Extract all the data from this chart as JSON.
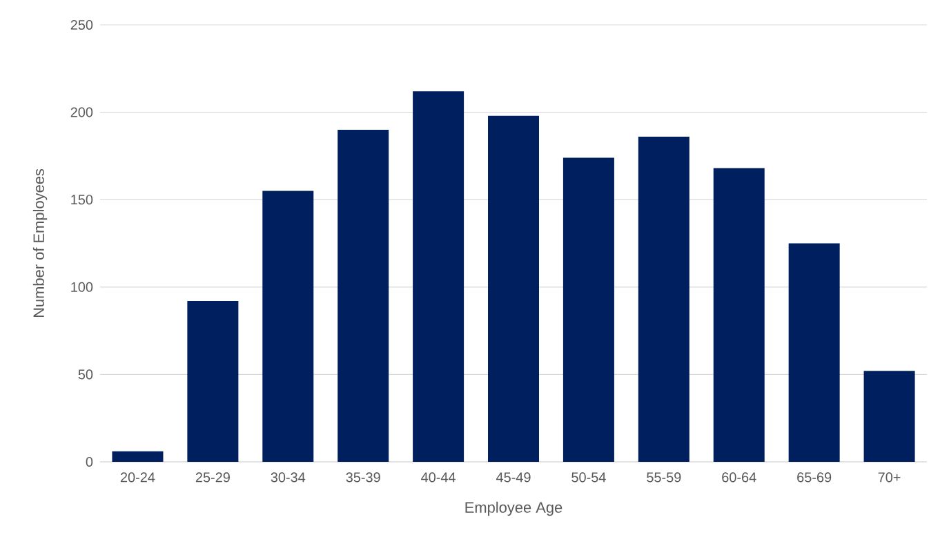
{
  "chart_data": {
    "type": "bar",
    "xlabel": "Employee Age",
    "ylabel": "Number of Employees",
    "categories": [
      "20-24",
      "25-29",
      "30-34",
      "35-39",
      "40-44",
      "45-49",
      "50-54",
      "55-59",
      "60-64",
      "65-69",
      "70+"
    ],
    "values": [
      6,
      92,
      155,
      190,
      212,
      198,
      174,
      186,
      168,
      125,
      52
    ],
    "color": "#001f5f",
    "ylim": [
      0,
      250
    ],
    "yticks": [
      0,
      50,
      100,
      150,
      200,
      250
    ],
    "grid": "y"
  }
}
